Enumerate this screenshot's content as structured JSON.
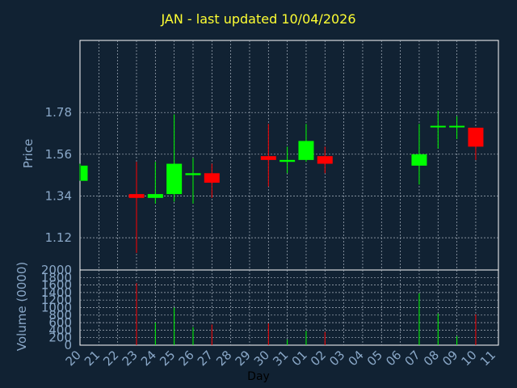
{
  "chart_data": {
    "type": "candlestick",
    "title": "JAN - last updated 10/04/2026",
    "price_ylabel": "Price",
    "volume_ylabel": "Volume (0000)",
    "xlabel": "Day",
    "x_tick_labels": [
      "20",
      "21",
      "22",
      "23",
      "24",
      "25",
      "26",
      "27",
      "28",
      "29",
      "30",
      "31",
      "01",
      "02",
      "03",
      "04",
      "05",
      "06",
      "07",
      "08",
      "09",
      "10",
      "11"
    ],
    "price_ticks": [
      "1.12",
      "1.34",
      "1.56",
      "1.78"
    ],
    "price_ylim": [
      0.95,
      2.16
    ],
    "volume_ticks": [
      "0",
      "200",
      "400",
      "600",
      "800",
      "1000",
      "1200",
      "1400",
      "1600",
      "1800",
      "2000"
    ],
    "volume_ylim": [
      0,
      2000
    ],
    "grid": true,
    "colors": {
      "up": "#00ff00",
      "down": "#ff0000",
      "background": "#112233",
      "title": "#ffff33",
      "axis_text": "#8aa8c8"
    },
    "candles": [
      {
        "day": "20",
        "open": 1.42,
        "close": 1.5,
        "high": 1.51,
        "low": 1.42,
        "volume": 0
      },
      {
        "day": "23",
        "open": 1.35,
        "close": 1.33,
        "high": 1.52,
        "low": 1.04,
        "volume": 1650
      },
      {
        "day": "24",
        "open": 1.33,
        "close": 1.35,
        "high": 1.52,
        "low": 1.3,
        "volume": 600
      },
      {
        "day": "25",
        "open": 1.35,
        "close": 1.51,
        "high": 1.77,
        "low": 1.31,
        "volume": 1000
      },
      {
        "day": "26",
        "open": 1.45,
        "close": 1.46,
        "high": 1.54,
        "low": 1.3,
        "volume": 480
      },
      {
        "day": "27",
        "open": 1.46,
        "close": 1.41,
        "high": 1.51,
        "low": 1.33,
        "volume": 550
      },
      {
        "day": "30",
        "open": 1.55,
        "close": 1.53,
        "high": 1.72,
        "low": 1.39,
        "volume": 580
      },
      {
        "day": "31",
        "open": 1.52,
        "close": 1.53,
        "high": 1.6,
        "low": 1.46,
        "volume": 150
      },
      {
        "day": "01",
        "open": 1.53,
        "close": 1.63,
        "high": 1.72,
        "low": 1.52,
        "volume": 380
      },
      {
        "day": "02",
        "open": 1.55,
        "close": 1.51,
        "high": 1.6,
        "low": 1.46,
        "volume": 350
      },
      {
        "day": "07",
        "open": 1.5,
        "close": 1.56,
        "high": 1.72,
        "low": 1.4,
        "volume": 1380
      },
      {
        "day": "08",
        "open": 1.71,
        "close": 1.71,
        "high": 1.79,
        "low": 1.59,
        "volume": 840
      },
      {
        "day": "09",
        "open": 1.71,
        "close": 1.71,
        "high": 1.76,
        "low": 1.64,
        "volume": 240
      },
      {
        "day": "10",
        "open": 1.7,
        "close": 1.6,
        "high": 1.7,
        "low": 1.53,
        "volume": 820
      }
    ]
  }
}
